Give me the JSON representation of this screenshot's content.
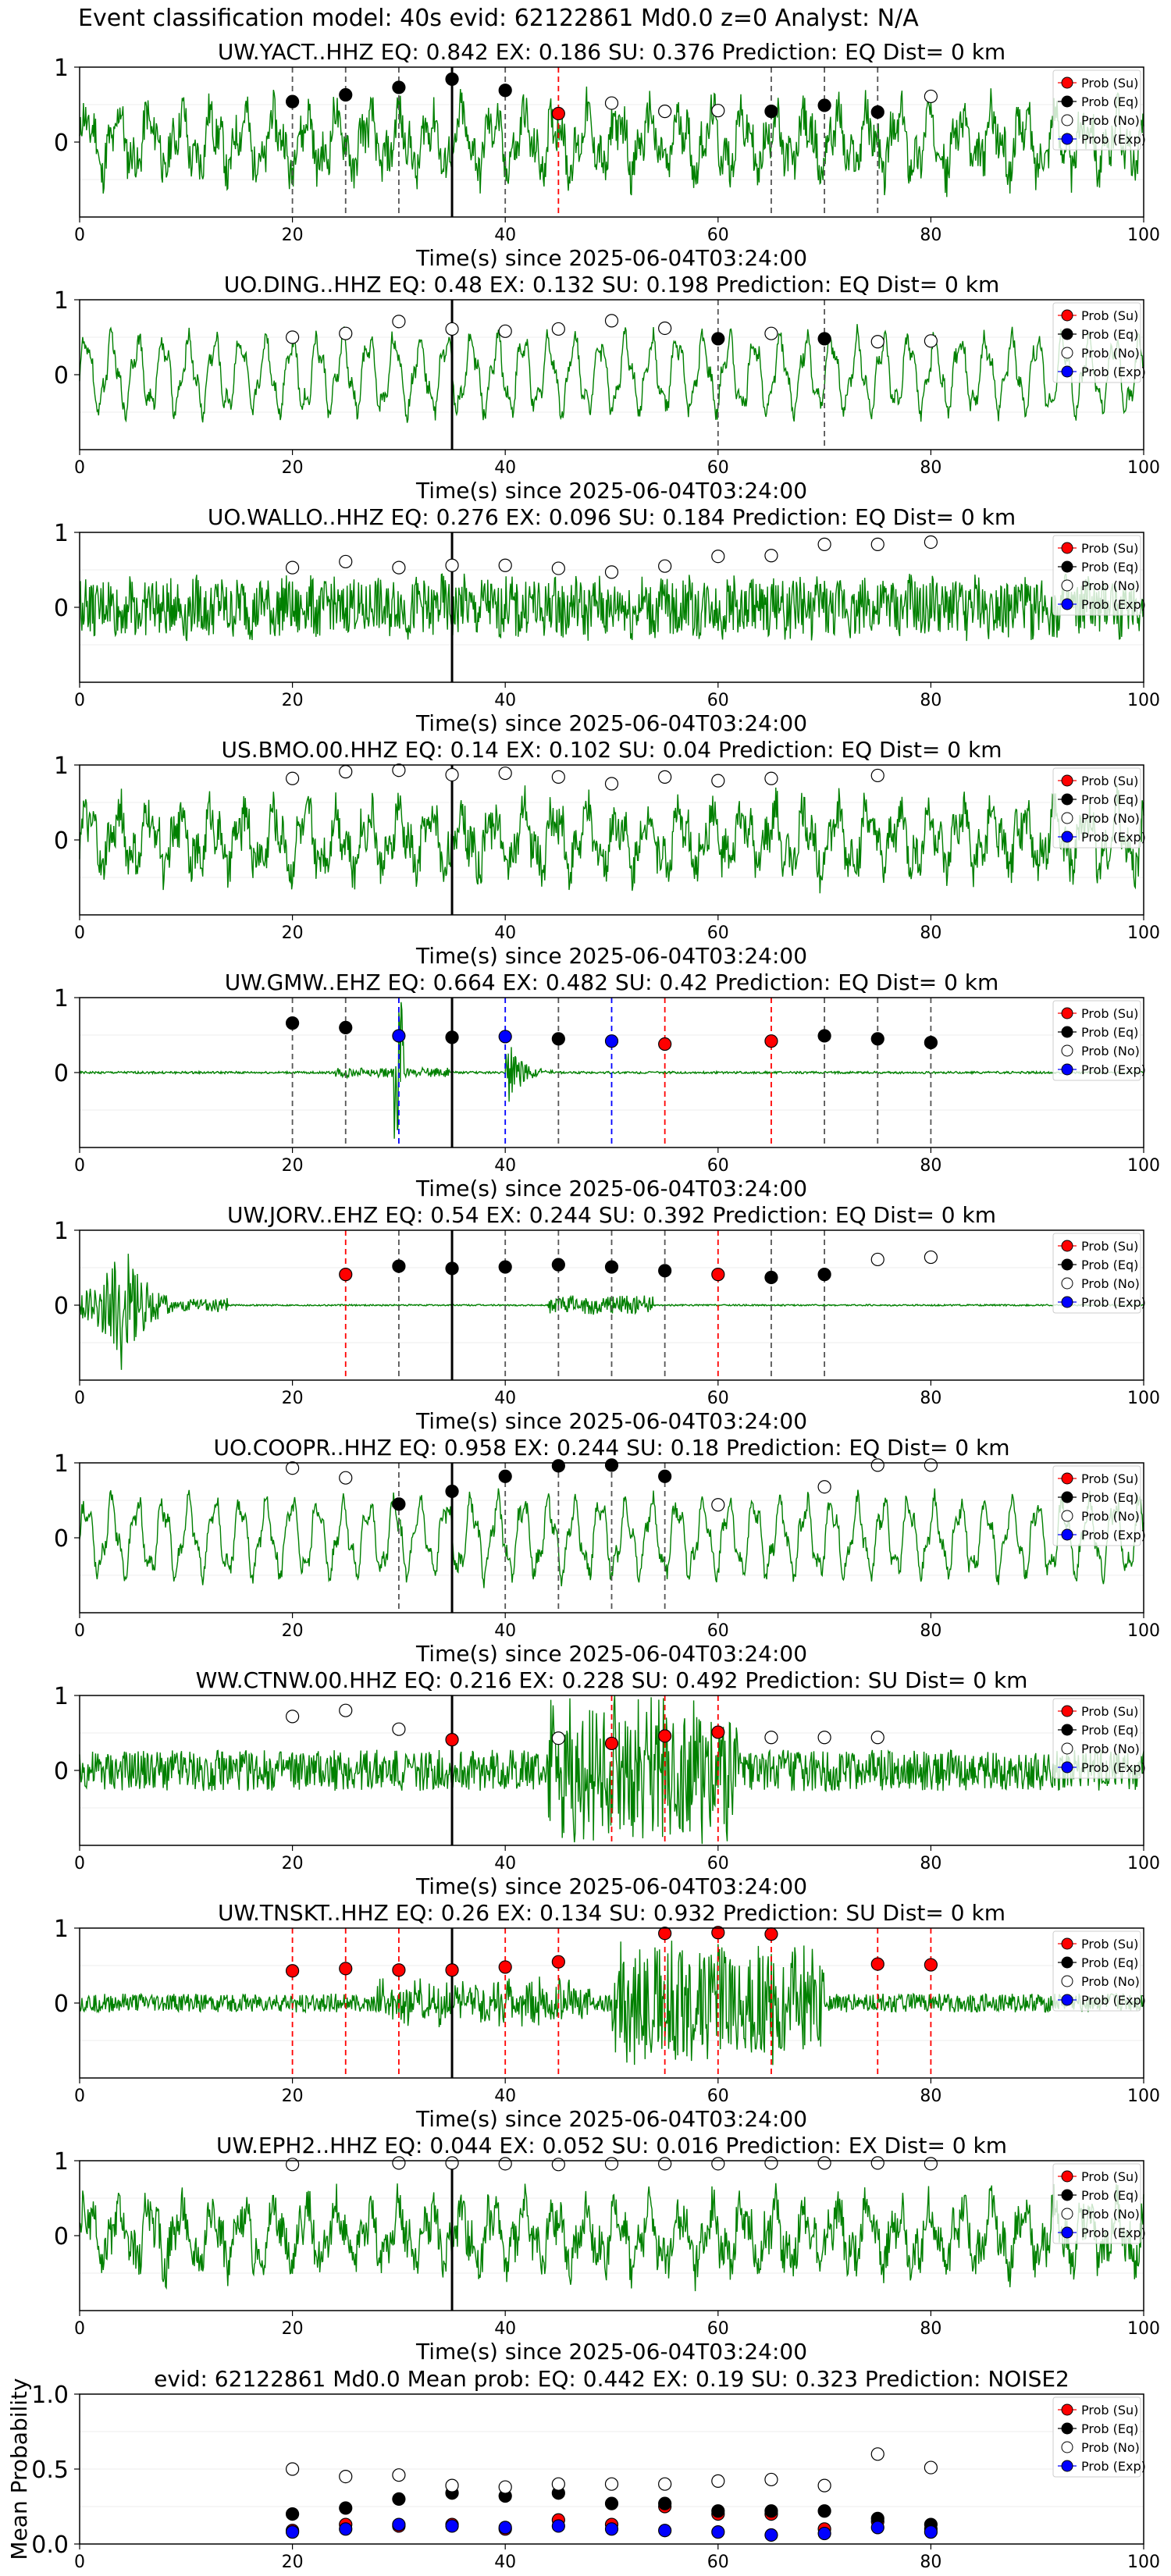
{
  "figure": {
    "title": "Event classification model: 40s evid: 62122861 Md0.0 z=0 Analyst: N/A"
  },
  "colors": {
    "waveform": "#008000",
    "su": "#ff0000",
    "eq": "#000000",
    "no": "#ffffff",
    "exp": "#0000ff",
    "eq_line": "#555555",
    "axis": "#000000"
  },
  "legend": [
    "Prob (Su)",
    "Prob (Eq)",
    "Prob (No)",
    "Prob (Exp)"
  ],
  "chart_data": [
    {
      "type": "line",
      "title": "UW.YACT..HHZ   EQ: 0.842  EX: 0.186  SU: 0.376   Prediction: EQ    Dist= 0 km",
      "xlabel": "Time(s) since 2025-06-04T03:24:00",
      "xlim": [
        0,
        100
      ],
      "ylim": [
        -1,
        1
      ],
      "x_ticks": [
        0,
        20,
        40,
        60,
        80,
        100
      ],
      "y_ticks": [
        1,
        0
      ],
      "legend": "top-right",
      "style": "seismic",
      "vline": 35,
      "t": [
        20,
        25,
        30,
        35,
        40,
        45,
        50,
        55,
        60,
        65,
        70,
        75,
        80
      ],
      "classes": [
        "eq",
        "eq",
        "eq",
        "eq",
        "eq",
        "su",
        "no",
        "no",
        "no",
        "eq",
        "eq",
        "eq",
        "no"
      ],
      "probs": [
        0.54,
        0.63,
        0.73,
        0.84,
        0.69,
        0.38,
        0.52,
        0.41,
        0.42,
        0.41,
        0.49,
        0.4,
        0.61
      ]
    },
    {
      "type": "line",
      "title": "UO.DING..HHZ   EQ: 0.48  EX: 0.132  SU: 0.198   Prediction: EQ    Dist= 0 km",
      "xlabel": "Time(s) since 2025-06-04T03:24:00",
      "xlim": [
        0,
        100
      ],
      "ylim": [
        -1,
        1
      ],
      "x_ticks": [
        0,
        20,
        40,
        60,
        80,
        100
      ],
      "y_ticks": [
        1,
        0
      ],
      "legend": "top-right",
      "style": "sine",
      "vline": 35,
      "t": [
        20,
        25,
        30,
        35,
        40,
        45,
        50,
        55,
        60,
        65,
        70,
        75,
        80
      ],
      "classes": [
        "no",
        "no",
        "no",
        "no",
        "no",
        "no",
        "no",
        "no",
        "eq",
        "no",
        "eq",
        "no",
        "no"
      ],
      "probs": [
        0.5,
        0.55,
        0.71,
        0.61,
        0.58,
        0.61,
        0.72,
        0.62,
        0.48,
        0.55,
        0.48,
        0.44,
        0.45
      ]
    },
    {
      "type": "line",
      "title": "UO.WALLO..HHZ   EQ: 0.276  EX: 0.096  SU: 0.184   Prediction: EQ    Dist= 0 km",
      "xlabel": "Time(s) since 2025-06-04T03:24:00",
      "xlim": [
        0,
        100
      ],
      "ylim": [
        -1,
        1
      ],
      "x_ticks": [
        0,
        20,
        40,
        60,
        80,
        100
      ],
      "y_ticks": [
        1,
        0
      ],
      "legend": "top-right",
      "style": "noise",
      "vline": 35,
      "t": [
        20,
        25,
        30,
        35,
        40,
        45,
        50,
        55,
        60,
        65,
        70,
        75,
        80
      ],
      "classes": [
        "no",
        "no",
        "no",
        "no",
        "no",
        "no",
        "no",
        "no",
        "no",
        "no",
        "no",
        "no",
        "no"
      ],
      "probs": [
        0.53,
        0.61,
        0.53,
        0.56,
        0.56,
        0.52,
        0.47,
        0.55,
        0.68,
        0.69,
        0.84,
        0.84,
        0.87
      ]
    },
    {
      "type": "line",
      "title": "US.BMO.00.HHZ   EQ: 0.14  EX: 0.102  SU: 0.04   Prediction: EQ    Dist= 0 km",
      "xlabel": "Time(s) since 2025-06-04T03:24:00",
      "xlim": [
        0,
        100
      ],
      "ylim": [
        -1,
        1
      ],
      "x_ticks": [
        0,
        20,
        40,
        60,
        80,
        100
      ],
      "y_ticks": [
        1,
        0
      ],
      "legend": "top-right",
      "style": "seismic",
      "vline": 35,
      "t": [
        20,
        25,
        30,
        35,
        40,
        45,
        50,
        55,
        60,
        65,
        75
      ],
      "classes": [
        "no",
        "no",
        "no",
        "no",
        "no",
        "no",
        "no",
        "no",
        "no",
        "no",
        "no"
      ],
      "probs": [
        0.82,
        0.91,
        0.93,
        0.87,
        0.89,
        0.84,
        0.75,
        0.84,
        0.79,
        0.82,
        0.86
      ]
    },
    {
      "type": "line",
      "title": "UW.GMW..EHZ   EQ: 0.664  EX: 0.482  SU: 0.42   Prediction: EQ    Dist= 0 km",
      "xlabel": "Time(s) since 2025-06-04T03:24:00",
      "xlim": [
        0,
        100
      ],
      "ylim": [
        -1,
        1
      ],
      "x_ticks": [
        0,
        20,
        40,
        60,
        80,
        100
      ],
      "y_ticks": [
        1,
        0
      ],
      "legend": "top-right",
      "style": "quiet",
      "vline": 35,
      "t": [
        20,
        25,
        30,
        35,
        40,
        45,
        50,
        55,
        65,
        70,
        75,
        80
      ],
      "classes": [
        "eq",
        "eq",
        "exp",
        "eq",
        "exp",
        "eq",
        "exp",
        "su",
        "su",
        "eq",
        "eq",
        "eq"
      ],
      "probs": [
        0.66,
        0.6,
        0.49,
        0.47,
        0.48,
        0.45,
        0.42,
        0.38,
        0.42,
        0.49,
        0.45,
        0.4
      ]
    },
    {
      "type": "line",
      "title": "UW.JORV..EHZ   EQ: 0.54  EX: 0.244  SU: 0.392   Prediction: EQ    Dist= 0 km",
      "xlabel": "Time(s) since 2025-06-04T03:24:00",
      "xlim": [
        0,
        100
      ],
      "ylim": [
        -1,
        1
      ],
      "x_ticks": [
        0,
        20,
        40,
        60,
        80,
        100
      ],
      "y_ticks": [
        1,
        0
      ],
      "legend": "top-right",
      "style": "burst",
      "vline": 35,
      "t": [
        25,
        30,
        35,
        40,
        45,
        50,
        55,
        60,
        65,
        70,
        75,
        80
      ],
      "classes": [
        "su",
        "eq",
        "eq",
        "eq",
        "eq",
        "eq",
        "eq",
        "su",
        "eq",
        "eq",
        "no",
        "no"
      ],
      "probs": [
        0.41,
        0.52,
        0.49,
        0.51,
        0.54,
        0.51,
        0.46,
        0.41,
        0.37,
        0.41,
        0.61,
        0.64
      ]
    },
    {
      "type": "line",
      "title": "UO.COOPR..HHZ   EQ: 0.958  EX: 0.244  SU: 0.18   Prediction: EQ    Dist= 0 km",
      "xlabel": "Time(s) since 2025-06-04T03:24:00",
      "xlim": [
        0,
        100
      ],
      "ylim": [
        -1,
        1
      ],
      "x_ticks": [
        0,
        20,
        40,
        60,
        80,
        100
      ],
      "y_ticks": [
        1,
        0
      ],
      "legend": "top-right",
      "style": "sine",
      "vline": 35,
      "t": [
        20,
        25,
        30,
        35,
        40,
        45,
        50,
        55,
        60,
        70,
        75,
        80
      ],
      "classes": [
        "no",
        "no",
        "eq",
        "eq",
        "eq",
        "eq",
        "eq",
        "eq",
        "no",
        "no",
        "no",
        "no"
      ],
      "probs": [
        0.93,
        0.8,
        0.45,
        0.62,
        0.82,
        0.96,
        0.97,
        0.82,
        0.44,
        0.68,
        0.97,
        0.97
      ]
    },
    {
      "type": "line",
      "title": "WW.CTNW.00.HHZ   EQ: 0.216  EX: 0.228  SU: 0.492   Prediction: SU    Dist= 0 km",
      "xlabel": "Time(s) since 2025-06-04T03:24:00",
      "xlim": [
        0,
        100
      ],
      "ylim": [
        -1,
        1
      ],
      "x_ticks": [
        0,
        20,
        40,
        60,
        80,
        100
      ],
      "y_ticks": [
        1,
        0
      ],
      "legend": "top-right",
      "style": "dense",
      "vline": 35,
      "t": [
        20,
        25,
        30,
        35,
        45,
        50,
        55,
        60,
        65,
        70,
        75
      ],
      "classes": [
        "no",
        "no",
        "no",
        "su",
        "no",
        "su",
        "su",
        "su",
        "no",
        "no",
        "no"
      ],
      "probs": [
        0.72,
        0.8,
        0.55,
        0.41,
        0.43,
        0.36,
        0.46,
        0.51,
        0.44,
        0.44,
        0.44
      ]
    },
    {
      "type": "line",
      "title": "UW.TNSKT..HHZ   EQ: 0.26  EX: 0.134  SU: 0.932   Prediction: SU    Dist= 0 km",
      "xlabel": "Time(s) since 2025-06-04T03:24:00",
      "xlim": [
        0,
        100
      ],
      "ylim": [
        -1,
        1
      ],
      "x_ticks": [
        0,
        20,
        40,
        60,
        80,
        100
      ],
      "y_ticks": [
        1,
        0
      ],
      "legend": "top-right",
      "style": "dense2",
      "vline": 35,
      "t": [
        20,
        25,
        30,
        35,
        40,
        45,
        55,
        60,
        65,
        75,
        80
      ],
      "classes": [
        "su",
        "su",
        "su",
        "su",
        "su",
        "su",
        "su",
        "su",
        "su",
        "su",
        "su"
      ],
      "probs": [
        0.43,
        0.46,
        0.44,
        0.44,
        0.48,
        0.55,
        0.93,
        0.94,
        0.92,
        0.52,
        0.51
      ]
    },
    {
      "type": "line",
      "title": "UW.EPH2..HHZ   EQ: 0.044  EX: 0.052  SU: 0.016   Prediction: EX    Dist= 0 km",
      "xlabel": "Time(s) since 2025-06-04T03:24:00",
      "xlim": [
        0,
        100
      ],
      "ylim": [
        -1,
        1
      ],
      "x_ticks": [
        0,
        20,
        40,
        60,
        80,
        100
      ],
      "y_ticks": [
        1,
        0
      ],
      "legend": "top-right",
      "style": "seismic",
      "vline": 35,
      "t": [
        20,
        30,
        35,
        40,
        45,
        50,
        55,
        60,
        65,
        70,
        75,
        80
      ],
      "classes": [
        "no",
        "no",
        "no",
        "no",
        "no",
        "no",
        "no",
        "no",
        "no",
        "no",
        "no",
        "no"
      ],
      "probs": [
        0.95,
        0.97,
        0.97,
        0.96,
        0.95,
        0.96,
        0.96,
        0.96,
        0.97,
        0.97,
        0.97,
        0.96
      ]
    },
    {
      "type": "scatter",
      "title": "evid: 62122861  Md0.0   Mean prob:   EQ: 0.442  EX: 0.19  SU: 0.323   Prediction: NOISE2",
      "xlabel": "",
      "ylabel": "Mean Probability",
      "xlim": [
        0,
        100
      ],
      "ylim": [
        0,
        1
      ],
      "x_ticks": [
        0,
        20,
        40,
        60,
        80,
        100
      ],
      "y_ticks": [
        1.0,
        0.5,
        0.0
      ],
      "legend": "top-right",
      "t": [
        20,
        25,
        30,
        35,
        40,
        45,
        50,
        55,
        60,
        65,
        70,
        75,
        80
      ],
      "series": [
        {
          "name": "Prob (Su)",
          "class": "su",
          "values": [
            0.09,
            0.13,
            0.12,
            0.13,
            0.1,
            0.16,
            0.13,
            0.25,
            0.2,
            0.2,
            0.1,
            0.15,
            0.1
          ]
        },
        {
          "name": "Prob (Eq)",
          "class": "eq",
          "values": [
            0.2,
            0.24,
            0.3,
            0.34,
            0.32,
            0.34,
            0.27,
            0.27,
            0.22,
            0.22,
            0.22,
            0.17,
            0.13
          ]
        },
        {
          "name": "Prob (No)",
          "class": "no",
          "values": [
            0.5,
            0.45,
            0.46,
            0.39,
            0.38,
            0.4,
            0.4,
            0.4,
            0.42,
            0.43,
            0.39,
            0.6,
            0.51
          ]
        },
        {
          "name": "Prob (Exp)",
          "class": "exp",
          "values": [
            0.08,
            0.1,
            0.13,
            0.12,
            0.11,
            0.12,
            0.1,
            0.09,
            0.08,
            0.06,
            0.07,
            0.11,
            0.08
          ]
        }
      ]
    }
  ]
}
